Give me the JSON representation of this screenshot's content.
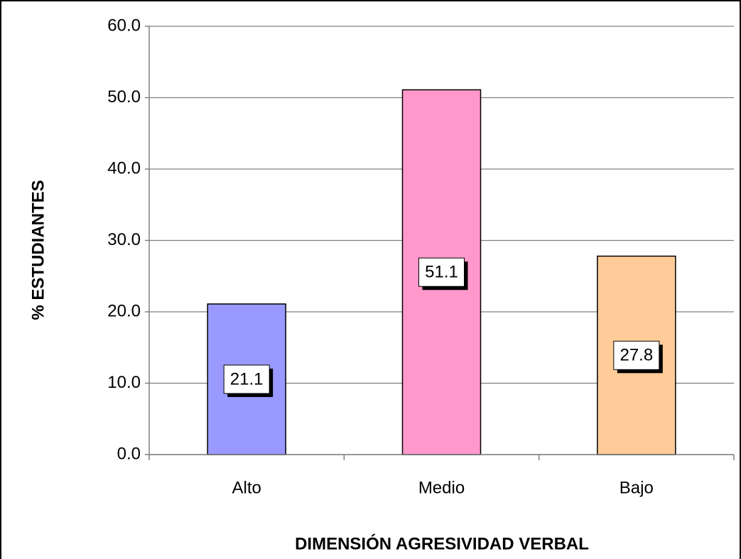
{
  "chart_data": {
    "type": "bar",
    "x_label": "DIMENSIÓN AGRESIVIDAD VERBAL",
    "y_label": "% ESTUDIANTES",
    "categories": [
      "Alto",
      "Medio",
      "Bajo"
    ],
    "values": [
      21.1,
      51.1,
      27.8
    ],
    "colors": [
      "#9999ff",
      "#ff99cc",
      "#ffcc99"
    ],
    "ylim": [
      0,
      60
    ],
    "yticks": [
      {
        "value": 0,
        "label": "0.0"
      },
      {
        "value": 10,
        "label": "10.0"
      },
      {
        "value": 20,
        "label": "20.0"
      },
      {
        "value": 30,
        "label": "30.0"
      },
      {
        "value": 40,
        "label": "40.0"
      },
      {
        "value": 50,
        "label": "50.0"
      },
      {
        "value": 60,
        "label": "60.0"
      }
    ],
    "grid": true
  }
}
